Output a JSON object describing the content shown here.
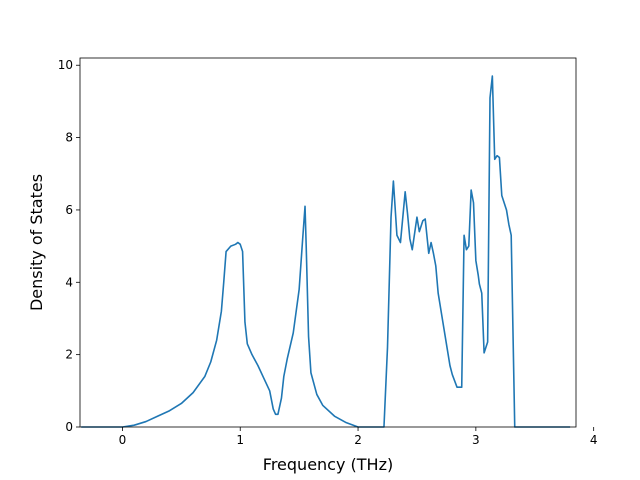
{
  "chart_data": {
    "type": "line",
    "title": "",
    "xlabel": "Frequency (THz)",
    "ylabel": "Density of States",
    "xlim": [
      -0.36,
      3.85
    ],
    "ylim": [
      0,
      10.2
    ],
    "xticks": [
      0,
      1,
      2,
      3,
      4
    ],
    "yticks": [
      0,
      2,
      4,
      6,
      8,
      10
    ],
    "grid": false,
    "legend": "none",
    "colors": {
      "line": "#1f77b4",
      "axes": "#000000",
      "background": "#ffffff"
    },
    "series": [
      {
        "x": [
          -0.35,
          0.0,
          0.1,
          0.2,
          0.3,
          0.4,
          0.5,
          0.6,
          0.7,
          0.75,
          0.8,
          0.84,
          0.86,
          0.88,
          0.92,
          0.96,
          0.98,
          1.0,
          1.02,
          1.04,
          1.06,
          1.1,
          1.15,
          1.2,
          1.25,
          1.28,
          1.3,
          1.32,
          1.35,
          1.37,
          1.4,
          1.45,
          1.5,
          1.53,
          1.55,
          1.56,
          1.58,
          1.6,
          1.65,
          1.7,
          1.8,
          1.9,
          2.0,
          2.22,
          2.25,
          2.28,
          2.3,
          2.33,
          2.36,
          2.4,
          2.42,
          2.44,
          2.46,
          2.5,
          2.52,
          2.55,
          2.57,
          2.6,
          2.62,
          2.64,
          2.66,
          2.68,
          2.72,
          2.76,
          2.78,
          2.8,
          2.84,
          2.88,
          2.9,
          2.92,
          2.94,
          2.96,
          2.98,
          3.0,
          3.02,
          3.03,
          3.05,
          3.07,
          3.1,
          3.12,
          3.14,
          3.16,
          3.18,
          3.2,
          3.22,
          3.26,
          3.28,
          3.3,
          3.33,
          3.37,
          3.45,
          3.47,
          3.49,
          3.52,
          3.8
        ],
        "y": [
          0,
          0,
          0.05,
          0.15,
          0.3,
          0.45,
          0.65,
          0.95,
          1.4,
          1.8,
          2.4,
          3.2,
          4.0,
          4.85,
          5.0,
          5.05,
          5.1,
          5.05,
          4.85,
          2.9,
          2.3,
          2.0,
          1.7,
          1.35,
          1.0,
          0.5,
          0.35,
          0.35,
          0.8,
          1.4,
          1.9,
          2.6,
          3.8,
          5.2,
          6.1,
          5.0,
          2.5,
          1.5,
          0.9,
          0.6,
          0.3,
          0.12,
          0.0,
          0.0,
          2.2,
          5.8,
          6.8,
          5.3,
          5.1,
          6.5,
          5.9,
          5.2,
          4.9,
          5.8,
          5.4,
          5.7,
          5.75,
          4.8,
          5.1,
          4.8,
          4.45,
          3.7,
          2.9,
          2.1,
          1.7,
          1.45,
          1.1,
          1.1,
          5.3,
          4.9,
          5.0,
          6.55,
          6.2,
          4.6,
          4.2,
          3.95,
          3.7,
          2.05,
          2.35,
          9.1,
          9.7,
          7.4,
          7.5,
          7.45,
          6.4,
          6.0,
          5.6,
          5.3,
          0.0,
          0.0,
          0.0,
          0.0,
          0.0,
          0.0,
          0.0
        ]
      }
    ]
  }
}
